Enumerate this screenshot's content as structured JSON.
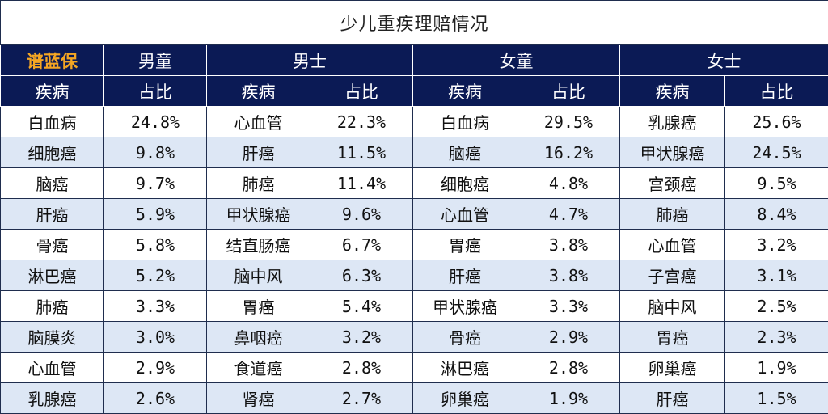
{
  "title": "少儿重疾理赔情况",
  "brand": "谱蓝保",
  "groups": [
    "男童",
    "男士",
    "女童",
    "女士"
  ],
  "col_disease": "疾病",
  "col_share": "占比",
  "colors": {
    "header_bg": "#0b1a55",
    "brand_text": "#f5a623",
    "stripe": "#dde7f5"
  },
  "rows": [
    [
      {
        "d": "白血病",
        "p": "24.8%"
      },
      {
        "d": "心血管",
        "p": "22.3%"
      },
      {
        "d": "白血病",
        "p": "29.5%"
      },
      {
        "d": "乳腺癌",
        "p": "25.6%"
      }
    ],
    [
      {
        "d": "细胞癌",
        "p": "9.8%"
      },
      {
        "d": "肝癌",
        "p": "11.5%"
      },
      {
        "d": "脑癌",
        "p": "16.2%"
      },
      {
        "d": "甲状腺癌",
        "p": "24.5%"
      }
    ],
    [
      {
        "d": "脑癌",
        "p": "9.7%"
      },
      {
        "d": "肺癌",
        "p": "11.4%"
      },
      {
        "d": "细胞癌",
        "p": "4.8%"
      },
      {
        "d": "宫颈癌",
        "p": "9.5%"
      }
    ],
    [
      {
        "d": "肝癌",
        "p": "5.9%"
      },
      {
        "d": "甲状腺癌",
        "p": "9.6%"
      },
      {
        "d": "心血管",
        "p": "4.7%"
      },
      {
        "d": "肺癌",
        "p": "8.4%"
      }
    ],
    [
      {
        "d": "骨癌",
        "p": "5.8%"
      },
      {
        "d": "结直肠癌",
        "p": "6.7%"
      },
      {
        "d": "胃癌",
        "p": "3.8%"
      },
      {
        "d": "心血管",
        "p": "3.2%"
      }
    ],
    [
      {
        "d": "淋巴癌",
        "p": "5.2%"
      },
      {
        "d": "脑中风",
        "p": "6.3%"
      },
      {
        "d": "肝癌",
        "p": "3.8%"
      },
      {
        "d": "子宫癌",
        "p": "3.1%"
      }
    ],
    [
      {
        "d": "肺癌",
        "p": "3.3%"
      },
      {
        "d": "胃癌",
        "p": "5.4%"
      },
      {
        "d": "甲状腺癌",
        "p": "3.3%"
      },
      {
        "d": "脑中风",
        "p": "2.5%"
      }
    ],
    [
      {
        "d": "脑膜炎",
        "p": "3.0%"
      },
      {
        "d": "鼻咽癌",
        "p": "3.2%"
      },
      {
        "d": "骨癌",
        "p": "2.9%"
      },
      {
        "d": "胃癌",
        "p": "2.3%"
      }
    ],
    [
      {
        "d": "心血管",
        "p": "2.9%"
      },
      {
        "d": "食道癌",
        "p": "2.8%"
      },
      {
        "d": "淋巴癌",
        "p": "2.8%"
      },
      {
        "d": "卵巢癌",
        "p": "1.9%"
      }
    ],
    [
      {
        "d": "乳腺癌",
        "p": "2.6%"
      },
      {
        "d": "肾癌",
        "p": "2.7%"
      },
      {
        "d": "卵巢癌",
        "p": "1.9%"
      },
      {
        "d": "肝癌",
        "p": "1.5%"
      }
    ]
  ]
}
